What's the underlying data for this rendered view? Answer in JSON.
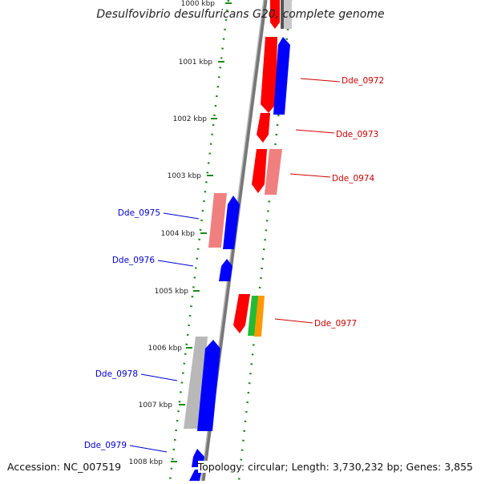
{
  "title": "Desulfovibrio desulfuricans G20, complete genome",
  "footer": {
    "accession": "Accession: NC_007519",
    "summary": "Topology: circular; Length: 3,730,232 bp; Genes: 3,855"
  },
  "colors": {
    "forward": "#0000ff",
    "reverse": "#ff0000",
    "reverse_light": "#f08080",
    "gray": "#b8b8b8",
    "green": "#22bb33",
    "orange": "#ff9900",
    "tick": "#1a8a1a",
    "label_fwd": "#0000cc",
    "label_rev": "#cc0000"
  },
  "axis": {
    "tick_labels": [
      "1000 kbp",
      "1001 kbp",
      "1002 kbp",
      "1003 kbp",
      "1004 kbp",
      "1005 kbp",
      "1006 kbp",
      "1007 kbp",
      "1008 kbp"
    ],
    "tick_values_kbp": [
      1000,
      1001,
      1002,
      1003,
      1004,
      1005,
      1006,
      1007,
      1008
    ]
  },
  "genes": [
    {
      "label": "Dde_0972",
      "strand": "reverse"
    },
    {
      "label": "Dde_0973",
      "strand": "reverse"
    },
    {
      "label": "Dde_0974",
      "strand": "reverse"
    },
    {
      "label": "Dde_0975",
      "strand": "forward"
    },
    {
      "label": "Dde_0976",
      "strand": "forward"
    },
    {
      "label": "Dde_0977",
      "strand": "reverse"
    },
    {
      "label": "Dde_0978",
      "strand": "forward"
    },
    {
      "label": "Dde_0979",
      "strand": "forward"
    }
  ]
}
